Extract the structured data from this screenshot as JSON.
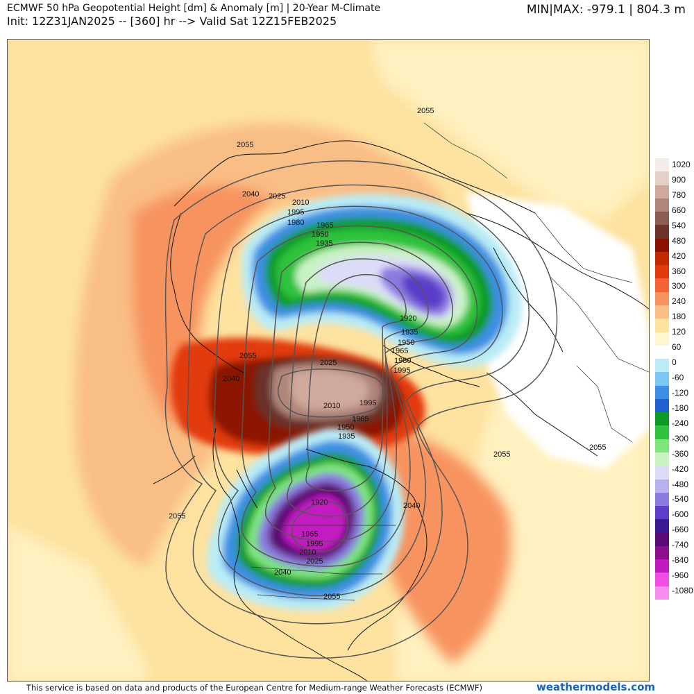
{
  "header": {
    "title": "ECMWF 50 hPa Geopotential Height [dm] & Anomaly [m] | 20-Year M-Climate",
    "subtitle": "Init: 12Z31JAN2025 -- [360] hr --> Valid Sat 12Z15FEB2025",
    "minmax": "MIN|MAX: -979.1 | 804.3 m"
  },
  "colorbar": {
    "labels": [
      "1020",
      "900",
      "780",
      "660",
      "540",
      "480",
      "420",
      "360",
      "300",
      "240",
      "180",
      "120",
      "60",
      "0",
      "-60",
      "-120",
      "-180",
      "-240",
      "-300",
      "-360",
      "-420",
      "-480",
      "-540",
      "-600",
      "-660",
      "-740",
      "-840",
      "-960",
      "-1080"
    ],
    "colors": [
      "#f4ece8",
      "#e6cfc7",
      "#cfa99c",
      "#b0857a",
      "#8a5e54",
      "#6b3329",
      "#8c1200",
      "#c42a00",
      "#e23b0e",
      "#f46236",
      "#f7935f",
      "#f9be85",
      "#fde2a0",
      "#fff6cf",
      "#ffffff",
      "#b9ecf6",
      "#7cc8f2",
      "#3d8fe3",
      "#1f5fd0",
      "#0c9a26",
      "#2fc23c",
      "#7ee67c",
      "#c9f2c4",
      "#dcdcf8",
      "#b8b0ef",
      "#8d7ae0",
      "#5c3ec9",
      "#3a1a93",
      "#5b0b75",
      "#8c0f8e",
      "#c21ac1",
      "#ef4de4",
      "#f78ff0"
    ]
  },
  "contour_labels": [
    "2055",
    "2040",
    "2025",
    "2010",
    "1995",
    "1980",
    "1965",
    "1950",
    "1935",
    "1920"
  ],
  "footer": {
    "note": "This service is based on data and products of the European Centre for Medium-range Weather Forecasts (ECMWF)",
    "site": "weathermodels.com"
  }
}
